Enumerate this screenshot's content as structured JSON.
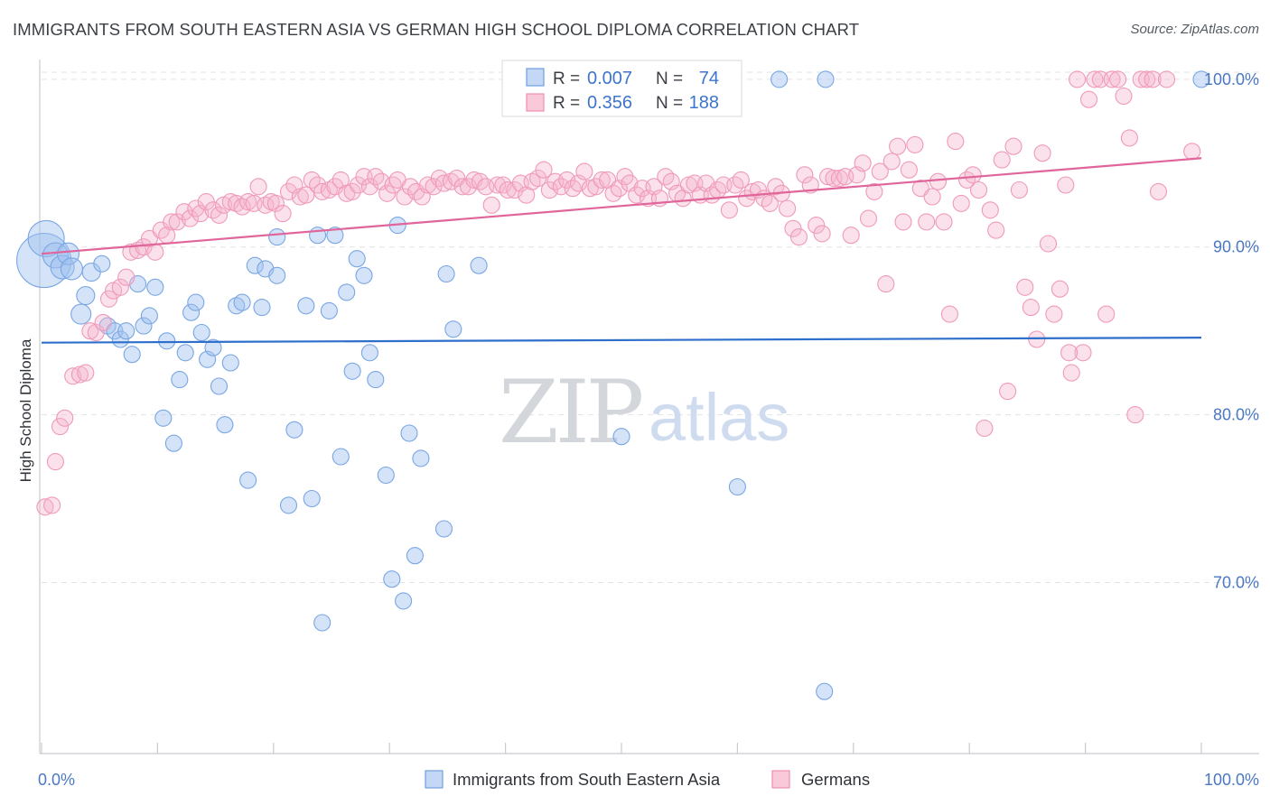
{
  "title": "IMMIGRANTS FROM SOUTH EASTERN ASIA VS GERMAN HIGH SCHOOL DIPLOMA CORRELATION CHART",
  "source": "Source: ZipAtlas.com",
  "watermark": {
    "zip": "ZIP",
    "atlas": "atlas"
  },
  "legend": {
    "rows": [
      {
        "r_label": "R =",
        "r_value": "0.007",
        "n_label": "N =",
        "n_value": "74"
      },
      {
        "r_label": "R =",
        "r_value": "0.356",
        "n_label": "N =",
        "n_value": "188"
      }
    ]
  },
  "chart_data": {
    "type": "scatter",
    "ylabel": "High School Diploma",
    "xlabel": "",
    "xlim": [
      0,
      100
    ],
    "ylim": [
      60.5,
      101.5
    ],
    "x_tick_labels": [
      "0.0%",
      "100.0%"
    ],
    "y_ticks": [
      70,
      80,
      90,
      100
    ],
    "y_tick_labels": [
      "70.0%",
      "80.0%",
      "90.0%",
      "100.0%"
    ],
    "grid": true,
    "legend_position": "top-center",
    "series": [
      {
        "name": "Immigrants from South Eastern Asia",
        "color": "#6f9fe0",
        "trend_color": "#2e6fcc",
        "trend": [
          [
            0,
            84.3
          ],
          [
            100,
            84.6
          ]
        ],
        "r": 0.007,
        "n": 74,
        "points": [
          [
            0.2,
            89.2,
            30
          ],
          [
            0.4,
            90.5,
            20
          ],
          [
            1.2,
            89.5,
            14
          ],
          [
            1.8,
            88.8,
            13
          ],
          [
            2.3,
            89.6,
            12
          ],
          [
            2.6,
            88.7,
            12
          ],
          [
            3.4,
            86.0,
            11
          ],
          [
            3.8,
            87.1,
            10
          ],
          [
            4.3,
            88.5,
            10
          ],
          [
            5.2,
            89.0,
            9
          ],
          [
            5.7,
            85.3,
            9
          ],
          [
            6.3,
            85.0,
            9
          ],
          [
            6.8,
            84.5,
            9
          ],
          [
            7.3,
            85.0,
            9
          ],
          [
            7.8,
            83.6,
            9
          ],
          [
            8.3,
            87.8,
            9
          ],
          [
            8.8,
            85.3,
            9
          ],
          [
            9.3,
            85.9,
            9
          ],
          [
            9.8,
            87.6,
            9
          ],
          [
            10.5,
            79.8,
            9
          ],
          [
            10.8,
            84.4,
            9
          ],
          [
            11.4,
            78.3,
            9
          ],
          [
            11.9,
            82.1,
            9
          ],
          [
            12.4,
            83.7,
            9
          ],
          [
            12.9,
            86.1,
            9
          ],
          [
            13.3,
            86.7,
            9
          ],
          [
            13.8,
            84.9,
            9
          ],
          [
            14.3,
            83.3,
            9
          ],
          [
            14.8,
            84.0,
            9
          ],
          [
            15.3,
            81.7,
            9
          ],
          [
            15.8,
            79.4,
            9
          ],
          [
            16.3,
            83.1,
            9
          ],
          [
            16.8,
            86.5,
            9
          ],
          [
            17.3,
            86.7,
            9
          ],
          [
            17.8,
            76.1,
            9
          ],
          [
            18.4,
            88.9,
            9
          ],
          [
            19.0,
            86.4,
            9
          ],
          [
            19.3,
            88.7,
            9
          ],
          [
            20.3,
            90.6,
            9
          ],
          [
            20.3,
            88.3,
            9
          ],
          [
            21.3,
            74.6,
            9
          ],
          [
            21.8,
            79.1,
            9
          ],
          [
            22.8,
            86.5,
            9
          ],
          [
            23.3,
            75.0,
            9
          ],
          [
            23.8,
            90.7,
            9
          ],
          [
            24.2,
            67.6,
            9
          ],
          [
            24.8,
            86.2,
            9
          ],
          [
            25.3,
            90.7,
            9
          ],
          [
            25.8,
            77.5,
            9
          ],
          [
            26.3,
            87.3,
            9
          ],
          [
            26.8,
            82.6,
            9
          ],
          [
            27.2,
            89.3,
            9
          ],
          [
            27.8,
            88.3,
            9
          ],
          [
            28.3,
            83.7,
            9
          ],
          [
            28.8,
            82.1,
            9
          ],
          [
            29.7,
            76.4,
            9
          ],
          [
            30.2,
            70.2,
            9
          ],
          [
            30.7,
            91.3,
            9
          ],
          [
            31.2,
            68.9,
            9
          ],
          [
            31.7,
            78.9,
            9
          ],
          [
            32.2,
            71.6,
            9
          ],
          [
            32.7,
            77.4,
            9
          ],
          [
            34.7,
            73.2,
            9
          ],
          [
            34.9,
            88.4,
            9
          ],
          [
            35.5,
            85.1,
            9
          ],
          [
            37.7,
            88.9,
            9
          ],
          [
            43.0,
            100.0,
            9
          ],
          [
            50.0,
            78.7,
            9
          ],
          [
            60.0,
            75.7,
            9
          ],
          [
            63.6,
            100.0,
            9
          ],
          [
            67.5,
            63.5,
            9
          ],
          [
            67.6,
            100.0,
            9
          ],
          [
            100.0,
            100.0,
            9
          ]
        ]
      },
      {
        "name": "Germans",
        "color": "#ef8fb0",
        "trend_color": "#e0659a",
        "trend": [
          [
            0,
            89.6
          ],
          [
            100,
            95.3
          ]
        ],
        "r": 0.356,
        "n": 188,
        "points": [
          [
            0.3,
            74.5
          ],
          [
            0.9,
            74.6
          ],
          [
            1.2,
            77.2
          ],
          [
            1.6,
            79.3
          ],
          [
            2.0,
            79.8
          ],
          [
            2.7,
            82.3
          ],
          [
            3.3,
            82.4
          ],
          [
            3.8,
            82.5
          ],
          [
            4.2,
            85.0
          ],
          [
            4.7,
            84.9
          ],
          [
            5.3,
            85.5
          ],
          [
            5.8,
            86.9
          ],
          [
            6.2,
            87.4
          ],
          [
            6.8,
            87.6
          ],
          [
            7.3,
            88.2
          ],
          [
            7.7,
            89.7
          ],
          [
            8.3,
            89.8
          ],
          [
            8.8,
            90.0
          ],
          [
            9.3,
            90.5
          ],
          [
            9.8,
            89.7
          ],
          [
            10.3,
            91.0
          ],
          [
            10.8,
            90.7
          ],
          [
            11.2,
            91.5
          ],
          [
            11.7,
            91.5
          ],
          [
            12.3,
            92.1
          ],
          [
            12.8,
            91.7
          ],
          [
            13.3,
            92.3
          ],
          [
            13.7,
            92.0
          ],
          [
            14.2,
            92.7
          ],
          [
            14.8,
            92.2
          ],
          [
            15.3,
            91.9
          ],
          [
            15.7,
            92.5
          ],
          [
            16.3,
            92.7
          ],
          [
            16.8,
            92.6
          ],
          [
            17.3,
            92.4
          ],
          [
            17.8,
            92.7
          ],
          [
            18.3,
            92.6
          ],
          [
            18.7,
            93.6
          ],
          [
            19.3,
            92.5
          ],
          [
            19.8,
            92.7
          ],
          [
            20.2,
            92.6
          ],
          [
            20.8,
            92.0
          ],
          [
            21.3,
            93.3
          ],
          [
            21.8,
            93.7
          ],
          [
            22.3,
            93.0
          ],
          [
            22.8,
            93.1
          ],
          [
            23.3,
            94.0
          ],
          [
            23.8,
            93.7
          ],
          [
            24.2,
            93.3
          ],
          [
            24.8,
            93.4
          ],
          [
            25.3,
            93.6
          ],
          [
            25.8,
            94.0
          ],
          [
            26.3,
            93.2
          ],
          [
            26.8,
            93.3
          ],
          [
            27.3,
            93.7
          ],
          [
            27.8,
            94.2
          ],
          [
            28.3,
            93.6
          ],
          [
            28.8,
            94.2
          ],
          [
            29.3,
            93.9
          ],
          [
            29.8,
            93.2
          ],
          [
            30.3,
            93.7
          ],
          [
            30.7,
            94.0
          ],
          [
            31.3,
            93.0
          ],
          [
            31.8,
            93.6
          ],
          [
            32.3,
            93.3
          ],
          [
            32.8,
            93.0
          ],
          [
            33.3,
            93.7
          ],
          [
            33.8,
            93.6
          ],
          [
            34.3,
            94.1
          ],
          [
            34.7,
            93.8
          ],
          [
            35.3,
            93.9
          ],
          [
            35.8,
            94.1
          ],
          [
            36.3,
            93.6
          ],
          [
            36.8,
            93.6
          ],
          [
            37.3,
            94.0
          ],
          [
            37.8,
            93.9
          ],
          [
            38.3,
            93.6
          ],
          [
            38.8,
            92.5
          ],
          [
            39.3,
            93.7
          ],
          [
            39.8,
            93.7
          ],
          [
            40.2,
            93.4
          ],
          [
            40.8,
            93.4
          ],
          [
            41.3,
            93.8
          ],
          [
            41.8,
            93.1
          ],
          [
            42.3,
            93.9
          ],
          [
            42.8,
            94.1
          ],
          [
            43.3,
            94.6
          ],
          [
            43.8,
            93.4
          ],
          [
            44.3,
            93.9
          ],
          [
            44.8,
            93.6
          ],
          [
            45.3,
            94.0
          ],
          [
            45.8,
            93.5
          ],
          [
            46.3,
            93.8
          ],
          [
            46.8,
            94.5
          ],
          [
            47.3,
            93.5
          ],
          [
            47.8,
            93.6
          ],
          [
            48.3,
            94.0
          ],
          [
            48.8,
            94.0
          ],
          [
            49.3,
            93.2
          ],
          [
            49.8,
            93.5
          ],
          [
            50.3,
            94.2
          ],
          [
            50.7,
            93.8
          ],
          [
            51.3,
            93.1
          ],
          [
            51.8,
            93.5
          ],
          [
            52.3,
            92.9
          ],
          [
            52.8,
            93.6
          ],
          [
            53.3,
            92.9
          ],
          [
            53.8,
            94.2
          ],
          [
            54.3,
            93.9
          ],
          [
            54.8,
            93.2
          ],
          [
            55.3,
            92.9
          ],
          [
            55.8,
            93.7
          ],
          [
            56.3,
            93.8
          ],
          [
            56.8,
            93.1
          ],
          [
            57.3,
            93.8
          ],
          [
            57.8,
            93.1
          ],
          [
            58.3,
            93.4
          ],
          [
            58.8,
            93.7
          ],
          [
            59.3,
            92.2
          ],
          [
            59.8,
            93.7
          ],
          [
            60.3,
            94.0
          ],
          [
            60.8,
            92.9
          ],
          [
            61.3,
            93.3
          ],
          [
            61.8,
            93.4
          ],
          [
            62.3,
            92.9
          ],
          [
            62.8,
            92.6
          ],
          [
            63.3,
            93.6
          ],
          [
            63.8,
            93.2
          ],
          [
            64.3,
            92.3
          ],
          [
            64.8,
            91.1
          ],
          [
            65.3,
            90.6
          ],
          [
            65.8,
            94.3
          ],
          [
            66.3,
            93.7
          ],
          [
            66.8,
            91.3
          ],
          [
            67.3,
            90.8
          ],
          [
            67.8,
            94.2
          ],
          [
            68.3,
            94.1
          ],
          [
            68.8,
            94.1
          ],
          [
            69.3,
            94.2
          ],
          [
            69.8,
            90.7
          ],
          [
            70.3,
            94.3
          ],
          [
            70.8,
            95.0
          ],
          [
            71.3,
            91.7
          ],
          [
            71.8,
            93.3
          ],
          [
            72.3,
            94.5
          ],
          [
            72.8,
            87.8
          ],
          [
            73.3,
            95.1
          ],
          [
            73.8,
            96.0
          ],
          [
            74.3,
            91.5
          ],
          [
            74.8,
            94.6
          ],
          [
            75.3,
            96.1
          ],
          [
            75.8,
            93.5
          ],
          [
            76.3,
            91.5
          ],
          [
            76.8,
            93.0
          ],
          [
            77.3,
            93.9
          ],
          [
            77.8,
            91.5
          ],
          [
            78.3,
            86.0
          ],
          [
            78.8,
            96.3
          ],
          [
            79.3,
            92.6
          ],
          [
            79.8,
            94.0
          ],
          [
            80.3,
            94.3
          ],
          [
            80.8,
            93.4
          ],
          [
            81.3,
            79.2
          ],
          [
            81.8,
            92.2
          ],
          [
            82.3,
            91.0
          ],
          [
            82.8,
            95.2
          ],
          [
            83.3,
            81.4
          ],
          [
            83.8,
            96.0
          ],
          [
            84.3,
            93.4
          ],
          [
            84.8,
            87.6
          ],
          [
            85.3,
            86.4
          ],
          [
            85.8,
            84.5
          ],
          [
            86.3,
            95.6
          ],
          [
            86.8,
            90.2
          ],
          [
            87.3,
            86.0
          ],
          [
            87.8,
            87.5
          ],
          [
            88.3,
            93.7
          ],
          [
            88.8,
            82.5
          ],
          [
            89.3,
            100.0
          ],
          [
            89.8,
            83.7
          ],
          [
            90.3,
            98.8
          ],
          [
            90.8,
            100.0
          ],
          [
            91.3,
            100.0
          ],
          [
            91.8,
            86.0
          ],
          [
            92.3,
            100.0
          ],
          [
            92.8,
            100.0
          ],
          [
            93.3,
            99.0
          ],
          [
            93.8,
            96.5
          ],
          [
            94.3,
            80.0
          ],
          [
            94.8,
            100.0
          ],
          [
            95.3,
            100.0
          ],
          [
            95.8,
            100.0
          ],
          [
            96.3,
            93.3
          ],
          [
            97.0,
            100.0
          ],
          [
            99.2,
            95.7
          ],
          [
            88.6,
            83.7
          ]
        ]
      }
    ]
  }
}
